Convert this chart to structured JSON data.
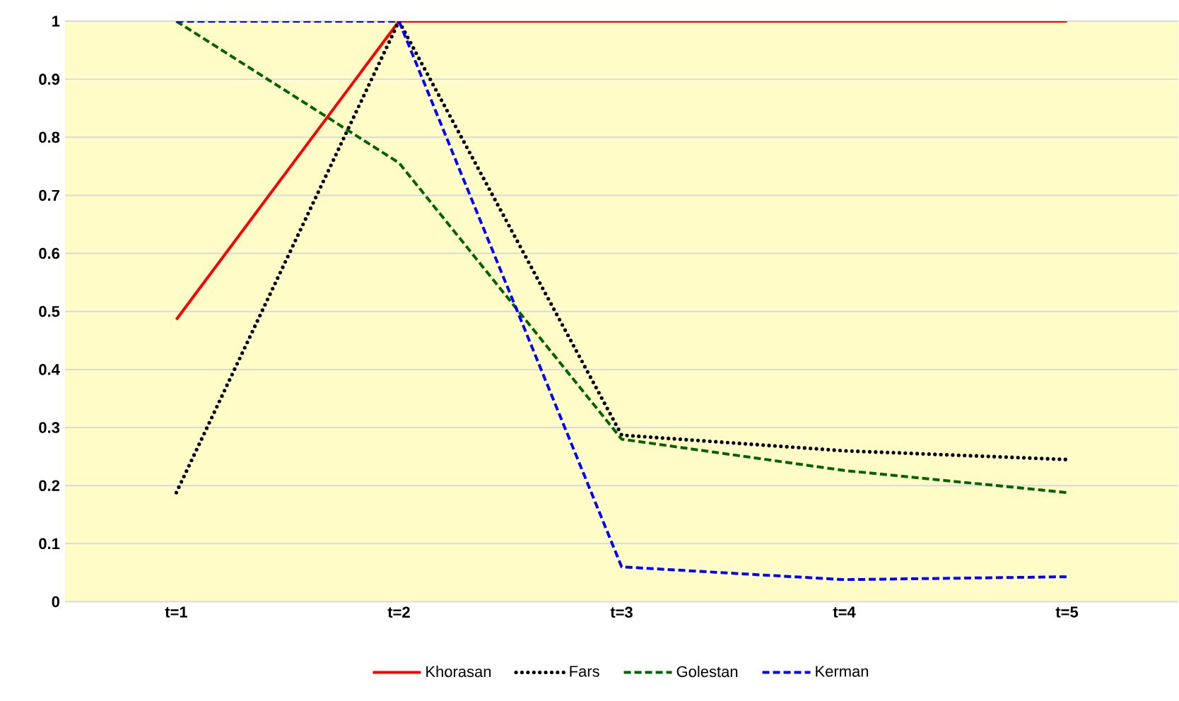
{
  "chart_data": {
    "type": "line",
    "categories": [
      "t=1",
      "t=2",
      "t=3",
      "t=4",
      "t=5"
    ],
    "series": [
      {
        "name": "Khorasan",
        "color": "#ff0000",
        "line_style": "solid",
        "values": [
          0.486,
          1,
          1,
          1,
          1
        ]
      },
      {
        "name": "Fars",
        "color": "#000000",
        "line_style": "dotted",
        "values": [
          0.188,
          1,
          0.287,
          0.26,
          0.245
        ]
      },
      {
        "name": "Golestan",
        "color": "#006400",
        "line_style": "dashed",
        "values": [
          1,
          0.756,
          0.28,
          0.226,
          0.188
        ]
      },
      {
        "name": "Kerman",
        "color": "#0000ff",
        "line_style": "dashed",
        "values": [
          1,
          1,
          0.06,
          0.038,
          0.043
        ]
      }
    ],
    "ylim": [
      0,
      1
    ],
    "yticks": [
      0,
      0.1,
      0.2,
      0.3,
      0.4,
      0.5,
      0.6,
      0.7,
      0.8,
      0.9,
      1
    ],
    "grid": "y",
    "legend": "bottom",
    "marker": "none"
  }
}
